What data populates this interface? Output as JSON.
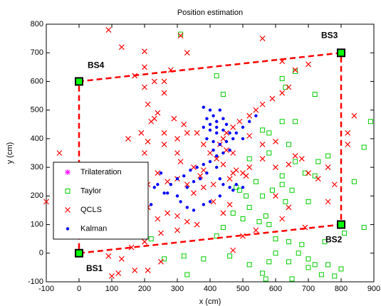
{
  "chart_data": {
    "type": "scatter",
    "title": "Position estimation",
    "x_label": "x (cm)",
    "y_label": "y (cm)",
    "xlim": [
      -100,
      900
    ],
    "ylim": [
      -100,
      800
    ],
    "xticks": [
      -100,
      0,
      100,
      200,
      300,
      400,
      500,
      600,
      700,
      800,
      900
    ],
    "yticks": [
      -100,
      0,
      100,
      200,
      300,
      400,
      500,
      600,
      700,
      800
    ],
    "legend": "west",
    "stations": [
      {
        "name": "BS1",
        "x": 0,
        "y": 0
      },
      {
        "name": "BS2",
        "x": 800,
        "y": 100
      },
      {
        "name": "BS3",
        "x": 800,
        "y": 700
      },
      {
        "name": "BS4",
        "x": 0,
        "y": 600
      }
    ],
    "station_color": "#00ff00",
    "boundary_color": "#ff0000",
    "series": [
      {
        "name": "Trilateration",
        "marker": "star",
        "color": "#ff00ff",
        "x": [],
        "y": []
      },
      {
        "name": "Taylor",
        "marker": "square",
        "color": "#00cc00",
        "x": [
          310,
          420,
          620,
          660,
          630,
          440,
          720,
          620,
          660,
          560,
          580,
          890,
          870,
          640,
          580,
          760,
          520,
          660,
          730,
          690,
          620,
          720,
          540,
          620,
          490,
          480,
          590,
          650,
          840,
          510,
          560,
          630,
          700,
          520,
          470,
          570,
          500,
          550,
          440,
          580,
          810,
          870,
          220,
          420,
          600,
          640,
          680,
          750,
          320,
          380,
          580,
          640,
          520,
          720,
          760,
          700,
          800,
          560,
          330,
          570,
          740,
          780,
          600,
          670,
          460,
          260,
          650,
          700
        ],
        "y": [
          765,
          620,
          610,
          635,
          580,
          555,
          555,
          460,
          460,
          430,
          420,
          460,
          370,
          380,
          350,
          340,
          330,
          320,
          320,
          280,
          270,
          270,
          250,
          240,
          220,
          230,
          220,
          220,
          250,
          200,
          200,
          180,
          180,
          160,
          140,
          130,
          120,
          110,
          90,
          100,
          70,
          90,
          50,
          60,
          50,
          40,
          30,
          40,
          -10,
          -20,
          -30,
          -30,
          -40,
          -40,
          -40,
          -50,
          -55,
          -70,
          -75,
          -90,
          -75,
          -80,
          0,
          0,
          -10,
          -20,
          -90,
          -20
        ]
      },
      {
        "name": "QCLS",
        "marker": "x",
        "color": "#ff0000",
        "x": [
          90,
          130,
          200,
          310,
          330,
          560,
          620,
          660,
          700,
          200,
          200,
          170,
          260,
          260,
          210,
          230,
          240,
          290,
          320,
          360,
          300,
          330,
          220,
          260,
          190,
          150,
          210,
          200,
          260,
          300,
          310,
          350,
          380,
          370,
          330,
          300,
          270,
          240,
          210,
          180,
          150,
          120,
          100,
          90,
          140,
          180,
          210,
          240,
          270,
          300,
          330,
          360,
          300,
          250,
          200,
          160,
          130,
          90,
          120,
          100,
          170,
          210,
          250,
          -60,
          -100,
          440,
          450,
          470,
          490,
          520,
          540,
          560,
          590,
          620,
          640,
          470,
          480,
          500,
          510,
          460,
          440,
          420,
          400,
          380,
          520,
          560,
          600,
          640,
          660,
          680,
          700,
          730,
          780,
          760,
          820,
          820,
          840,
          600,
          560,
          520,
          470,
          430,
          450,
          410,
          380,
          350,
          410,
          460,
          440,
          600,
          640,
          760,
          620,
          690,
          540,
          500,
          470,
          230,
          280
        ],
        "y": [
          780,
          720,
          705,
          760,
          700,
          750,
          670,
          640,
          660,
          650,
          580,
          620,
          600,
          560,
          520,
          470,
          490,
          470,
          450,
          420,
          400,
          420,
          460,
          420,
          420,
          400,
          390,
          350,
          380,
          350,
          320,
          300,
          290,
          270,
          240,
          260,
          250,
          280,
          240,
          220,
          250,
          300,
          210,
          190,
          170,
          150,
          160,
          120,
          140,
          130,
          110,
          100,
          80,
          70,
          40,
          20,
          -20,
          -10,
          -70,
          -80,
          -60,
          -60,
          -30,
          350,
          180,
          400,
          420,
          440,
          460,
          480,
          500,
          520,
          540,
          560,
          580,
          280,
          290,
          280,
          270,
          260,
          310,
          330,
          350,
          380,
          300,
          330,
          300,
          310,
          340,
          330,
          280,
          260,
          240,
          300,
          380,
          420,
          480,
          390,
          380,
          410,
          350,
          380,
          360,
          240,
          230,
          210,
          180,
          170,
          140,
          200,
          160,
          180,
          120,
          90,
          80,
          60,
          10,
          600,
          640
        ]
      },
      {
        "name": "Kalman",
        "marker": "dot",
        "color": "#0000ff",
        "x": [
          380,
          400,
          410,
          430,
          390,
          420,
          440,
          450,
          380,
          400,
          420,
          440,
          460,
          470,
          390,
          410,
          430,
          450,
          480,
          500,
          520,
          540,
          500,
          410,
          420,
          400,
          380,
          360,
          340,
          320,
          300,
          280,
          270,
          260,
          240,
          230,
          250,
          220,
          330,
          350,
          370,
          390,
          420,
          430,
          440,
          460,
          480,
          500,
          470,
          430,
          400,
          380,
          350,
          330,
          310,
          300,
          440,
          460,
          400,
          420
        ],
        "y": [
          510,
          500,
          480,
          500,
          470,
          460,
          470,
          450,
          440,
          430,
          420,
          430,
          420,
          400,
          400,
          390,
          380,
          390,
          420,
          440,
          460,
          480,
          400,
          360,
          340,
          320,
          310,
          300,
          290,
          270,
          260,
          240,
          210,
          210,
          240,
          230,
          280,
          170,
          230,
          250,
          260,
          280,
          300,
          260,
          240,
          230,
          240,
          230,
          220,
          200,
          180,
          170,
          150,
          160,
          180,
          200,
          350,
          360,
          450,
          440
        ]
      }
    ]
  }
}
